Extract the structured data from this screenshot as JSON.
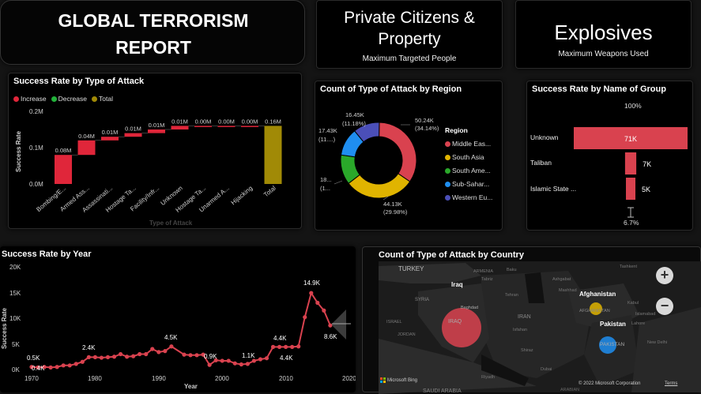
{
  "header": {
    "line1": "GLOBAL TERRORISM",
    "line2": "REPORT"
  },
  "kpi1": {
    "value_line1": "Private Citizens &",
    "value_line2": "Property",
    "caption": "Maximum Targeted People"
  },
  "kpi2": {
    "value": "Explosives",
    "caption": "Maximum Weapons Used"
  },
  "waterfall": {
    "title": "Success Rate by Type of Attack",
    "legend": [
      {
        "label": "Increase",
        "color": "#e0263a"
      },
      {
        "label": "Decrease",
        "color": "#22b33a"
      },
      {
        "label": "Total",
        "color": "#a18a06"
      }
    ],
    "ylabel": "Success Rate",
    "xlabel": "Type of Attack",
    "yticks": [
      "0.2M",
      "0.1M",
      "0.0M"
    ],
    "bar_labels": [
      "0.08M",
      "0.04M",
      "0.01M",
      "0.01M",
      "0.01M",
      "0.01M",
      "0.00M",
      "0.00M",
      "0.00M",
      "0.16M"
    ],
    "categories": [
      "Bombing/E...",
      "Armed Ass...",
      "Assassinati...",
      "Hostage Ta...",
      "Facility/Infr...",
      "Unknown",
      "Hostage Ta...",
      "Unarmed A...",
      "Hijacking",
      "Total"
    ]
  },
  "donut": {
    "title": "Count of Type of Attack by Region",
    "legend_title": "Region",
    "legend": [
      {
        "label": "Middle Eas...",
        "color": "#d9424f"
      },
      {
        "label": "South Asia",
        "color": "#e0b400"
      },
      {
        "label": "South Ame...",
        "color": "#2aa82a"
      },
      {
        "label": "Sub-Sahar...",
        "color": "#1f8ef0"
      },
      {
        "label": "Western Eu...",
        "color": "#4b4fb8"
      }
    ],
    "labels": {
      "me": [
        "50.24K",
        "(34.14%)"
      ],
      "sa": [
        "44.13K",
        "(29.98%)"
      ],
      "sam": [
        "18...",
        "(1..."
      ],
      "ss": [
        "17.43K",
        "(11....)"
      ],
      "we": [
        "16.45K",
        "(11.18%)"
      ]
    }
  },
  "groups": {
    "title": "Success Rate by Name of Group",
    "top_label": "100%",
    "bottom_label": "6.7%",
    "rows": [
      {
        "name": "Unknown",
        "value": "71K"
      },
      {
        "name": "Taliban",
        "value": "7K"
      },
      {
        "name": "Islamic State ...",
        "value": "5K"
      }
    ]
  },
  "yearly": {
    "title": "Success Rate by Year",
    "ylabel": "Success Rate",
    "xlabel": "Year",
    "yticks": [
      "20K",
      "15K",
      "10K",
      "5K",
      "0K"
    ],
    "xticks": [
      "1970",
      "1980",
      "1990",
      "2000",
      "2010",
      "2020"
    ],
    "point_labels": [
      "0.5K",
      "0.4K",
      "2.4K",
      "4.5K",
      "0.9K",
      "1.1K",
      "4.4K",
      "4.4K",
      "14.9K",
      "8.6K"
    ]
  },
  "map": {
    "title": "Count of Type of Attack by Country",
    "place_labels": [
      "TURKEY",
      "Iraq",
      "SYRIA",
      "IRAQ",
      "Baghdad",
      "IRAN",
      "Afghanistan",
      "AFGHANISTAN",
      "Pakistan",
      "PAKISTAN",
      "Tashkent",
      "Ashgabat",
      "Kabul",
      "Islamabad",
      "New Delhi",
      "Riyadh",
      "SAUDI ARABIA",
      "ARABIAN",
      "Lahore",
      "Tehran",
      "Tabriz",
      "Isfahan",
      "Shiraz",
      "Dubai",
      "Mashhad",
      "Baku",
      "ARMENIA",
      "ISRAEL",
      "JORDAN"
    ],
    "zoom_in": "+",
    "zoom_out": "−",
    "attribution_left": "Microsoft Bing",
    "attribution_right": "© 2022 Microsoft Corporation",
    "terms": "Terms"
  },
  "chart_data": [
    {
      "type": "bar",
      "subtype": "waterfall",
      "title": "Success Rate by Type of Attack",
      "xlabel": "Type of Attack",
      "ylabel": "Success Rate",
      "categories": [
        "Bombing/E...",
        "Armed Ass...",
        "Assassinati...",
        "Hostage Ta...",
        "Facility/Infr...",
        "Unknown",
        "Hostage Ta...",
        "Unarmed A...",
        "Hijacking",
        "Total"
      ],
      "values": [
        0.08,
        0.04,
        0.01,
        0.01,
        0.01,
        0.01,
        0.0,
        0.0,
        0.0,
        0.16
      ],
      "unit": "M",
      "ylim": [
        0,
        0.2
      ],
      "legend": [
        "Increase",
        "Decrease",
        "Total"
      ]
    },
    {
      "type": "pie",
      "subtype": "donut",
      "title": "Count of Type of Attack by Region",
      "categories": [
        "Middle Eas...",
        "South Asia",
        "South Ame...",
        "Sub-Sahar...",
        "Western Eu..."
      ],
      "values": [
        50.24,
        44.13,
        18.7,
        17.43,
        16.45
      ],
      "percent": [
        34.14,
        29.98,
        12.7,
        11.84,
        11.18
      ],
      "unit": "K"
    },
    {
      "type": "bar",
      "subtype": "funnel",
      "title": "Success Rate by Name of Group",
      "categories": [
        "Unknown",
        "Taliban",
        "Islamic State ..."
      ],
      "values": [
        71,
        7,
        5
      ],
      "unit": "K"
    },
    {
      "type": "line",
      "title": "Success Rate by Year",
      "xlabel": "Year",
      "ylabel": "Success Rate",
      "x": [
        1970,
        1971,
        1972,
        1973,
        1974,
        1975,
        1976,
        1977,
        1978,
        1979,
        1980,
        1981,
        1982,
        1983,
        1984,
        1985,
        1986,
        1987,
        1988,
        1989,
        1990,
        1991,
        1992,
        1994,
        1995,
        1996,
        1997,
        1998,
        1999,
        2000,
        2001,
        2002,
        2003,
        2004,
        2005,
        2006,
        2007,
        2008,
        2009,
        2010,
        2011,
        2012,
        2013,
        2014,
        2015,
        2016,
        2017
      ],
      "y": [
        0.5,
        0.4,
        0.5,
        0.4,
        0.5,
        0.8,
        0.8,
        1.1,
        1.5,
        2.4,
        2.4,
        2.3,
        2.4,
        2.5,
        3.0,
        2.5,
        2.6,
        3.0,
        3.0,
        4.0,
        3.4,
        3.6,
        4.5,
        2.9,
        2.8,
        2.8,
        2.9,
        0.9,
        1.8,
        1.7,
        1.7,
        1.2,
        1.0,
        1.1,
        1.7,
        2.0,
        2.2,
        4.4,
        4.4,
        4.4,
        4.4,
        4.5,
        10.2,
        14.9,
        13.0,
        11.5,
        8.6
      ],
      "ylim": [
        0,
        20
      ],
      "xlim": [
        1970,
        2020
      ]
    }
  ]
}
